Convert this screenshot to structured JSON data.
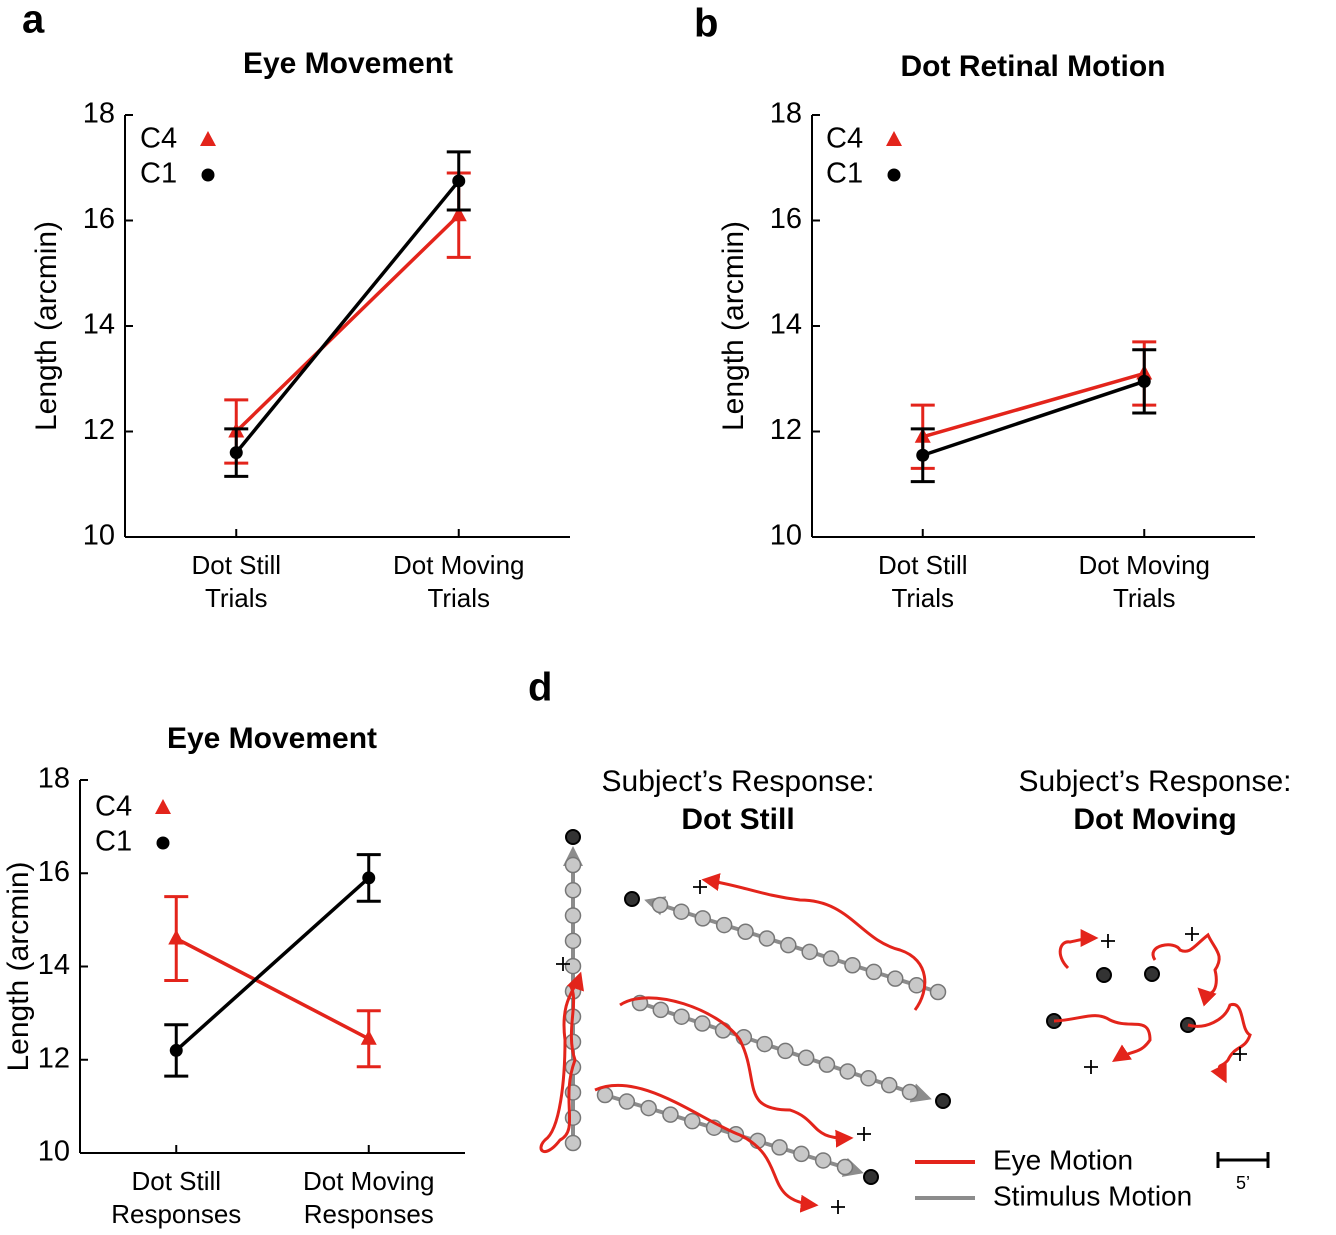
{
  "panel_labels": [
    "a",
    "b",
    "d"
  ],
  "chart_data": [
    {
      "type": "line",
      "title": "Eye Movement",
      "ylabel": "Length (arcmin)",
      "categories": [
        [
          "Dot Still",
          "Trials"
        ],
        [
          "Dot Moving",
          "Trials"
        ]
      ],
      "ylim": [
        10,
        18
      ],
      "yticks": [
        10,
        12,
        14,
        16,
        18
      ],
      "legend": "upper left",
      "series": [
        {
          "name": "C4",
          "color": "#e3241b",
          "marker": "triangle",
          "values": [
            12.0,
            16.1
          ],
          "errors": [
            0.6,
            0.8
          ]
        },
        {
          "name": "C1",
          "color": "#000000",
          "marker": "circle",
          "values": [
            11.6,
            16.75
          ],
          "errors": [
            0.45,
            0.55
          ]
        }
      ]
    },
    {
      "type": "line",
      "title": "Dot Retinal Motion",
      "ylabel": "Length (arcmin)",
      "categories": [
        [
          "Dot Still",
          "Trials"
        ],
        [
          "Dot Moving",
          "Trials"
        ]
      ],
      "ylim": [
        10,
        18
      ],
      "yticks": [
        10,
        12,
        14,
        16,
        18
      ],
      "legend": "upper left",
      "series": [
        {
          "name": "C4",
          "color": "#e3241b",
          "marker": "triangle",
          "values": [
            11.9,
            13.1
          ],
          "errors": [
            0.6,
            0.6
          ]
        },
        {
          "name": "C1",
          "color": "#000000",
          "marker": "circle",
          "values": [
            11.55,
            12.95
          ],
          "errors": [
            0.5,
            0.6
          ]
        }
      ]
    },
    {
      "type": "line",
      "title": "Eye Movement",
      "ylabel": "Length (arcmin)",
      "categories": [
        [
          "Dot Still",
          "Responses"
        ],
        [
          "Dot Moving",
          "Responses"
        ]
      ],
      "ylim": [
        10,
        18
      ],
      "yticks": [
        10,
        12,
        14,
        16,
        18
      ],
      "legend": "upper left",
      "series": [
        {
          "name": "C4",
          "color": "#e3241b",
          "marker": "triangle",
          "values": [
            14.6,
            12.45
          ],
          "errors": [
            0.9,
            0.6
          ]
        },
        {
          "name": "C1",
          "color": "#000000",
          "marker": "circle",
          "values": [
            12.2,
            15.9
          ],
          "errors": [
            0.55,
            0.5
          ]
        }
      ]
    }
  ],
  "diagram": {
    "left_heading": "Subject’s Response:",
    "left_response": "Dot Still",
    "right_heading": "Subject’s Response:",
    "right_response": "Dot Moving",
    "legend": [
      "Eye Motion",
      "Stimulus Motion"
    ],
    "scale_label": "5’"
  }
}
